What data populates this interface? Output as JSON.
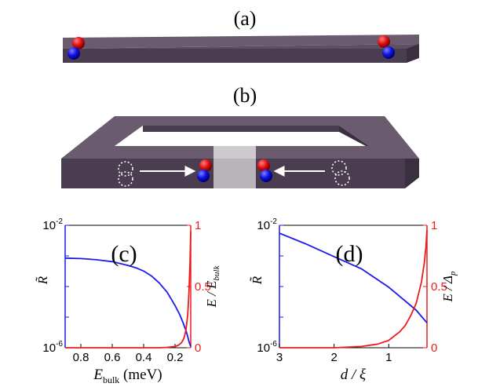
{
  "panels": {
    "a": {
      "label": "(a)"
    },
    "b": {
      "label": "(b)"
    }
  },
  "colors": {
    "blue": "#1a1aee",
    "red": "#ee1a1a",
    "bar": "#4a3d4f",
    "bar_top": "#5e5062",
    "gap": "#b9b4ba"
  },
  "chart_data": [
    {
      "panel_label": "(c)",
      "type": "line",
      "xlabel_main": "E",
      "xlabel_sub": "bulk",
      "xlabel_unit": " (meV)",
      "xlim": [
        0.9,
        0.1
      ],
      "xticks": [
        0.8,
        0.6,
        0.4,
        0.2
      ],
      "xticklabels": [
        "0.8",
        "0.6",
        "0.4",
        "0.2"
      ],
      "left_axis": {
        "label": "R̃",
        "scale": "log",
        "ylim": [
          1e-06,
          0.01
        ],
        "ticklabels": [
          "10-2",
          "10-6"
        ],
        "color": "#1a1aee"
      },
      "right_axis": {
        "label_main": "E / E",
        "label_sub": "bulk",
        "ylim": [
          0,
          1
        ],
        "ticks": [
          0,
          0.5,
          1
        ],
        "ticklabels": [
          "0",
          "0.5",
          "1"
        ],
        "color": "#ee1a1a"
      },
      "series": [
        {
          "axis": "left",
          "color": "#1a1aee",
          "x": [
            0.9,
            0.8,
            0.7,
            0.6,
            0.5,
            0.45,
            0.4,
            0.35,
            0.3,
            0.25,
            0.2,
            0.17,
            0.15,
            0.13,
            0.12,
            0.11,
            0.1
          ],
          "y": [
            0.00085,
            0.00082,
            0.00075,
            0.00065,
            0.00049,
            0.00041,
            0.00032,
            0.00022,
            0.00013,
            6.5e-05,
            2.4e-05,
            1.2e-05,
            6.8e-06,
            3.6e-06,
            2.4e-06,
            1.5e-06,
            1.1e-06
          ]
        },
        {
          "axis": "right",
          "color": "#ee1a1a",
          "x": [
            0.9,
            0.5,
            0.3,
            0.25,
            0.2,
            0.18,
            0.16,
            0.15,
            0.14,
            0.13,
            0.12,
            0.115,
            0.11,
            0.105,
            0.1
          ],
          "y": [
            0.0,
            0.0,
            0.0,
            0.003,
            0.01,
            0.02,
            0.04,
            0.06,
            0.09,
            0.15,
            0.26,
            0.36,
            0.5,
            0.68,
            0.95
          ]
        }
      ]
    },
    {
      "panel_label": "(d)",
      "type": "line",
      "xlabel_main": "d / ξ",
      "xlim": [
        3,
        0.3
      ],
      "xticks": [
        3,
        2,
        1
      ],
      "xticklabels": [
        "3",
        "2",
        "1"
      ],
      "left_axis": {
        "label": "R̃",
        "scale": "log",
        "ylim": [
          1e-06,
          0.01
        ],
        "ticklabels": [
          "10-2",
          "10-6"
        ],
        "color": "#1a1aee"
      },
      "right_axis": {
        "label_main": "E / Δ",
        "label_sub": "p",
        "ylim": [
          0,
          1
        ],
        "ticks": [
          0,
          0.5,
          1
        ],
        "ticklabels": [
          "0",
          "0.5",
          "1"
        ],
        "color": "#ee1a1a"
      },
      "series": [
        {
          "axis": "left",
          "color": "#1a1aee",
          "x": [
            3,
            2.5,
            2,
            1.5,
            1,
            0.5,
            0.3
          ],
          "y": [
            0.0055,
            0.0024,
            0.00095,
            0.00038,
            9.5e-05,
            1.7e-05,
            6.5e-06
          ]
        },
        {
          "axis": "right",
          "color": "#ee1a1a",
          "x": [
            3,
            2,
            1.5,
            1.2,
            1.0,
            0.8,
            0.7,
            0.6,
            0.5,
            0.45,
            0.4,
            0.35,
            0.32,
            0.3
          ],
          "y": [
            0.0,
            0.0,
            0.01,
            0.03,
            0.06,
            0.13,
            0.18,
            0.26,
            0.36,
            0.45,
            0.54,
            0.69,
            0.82,
            0.96
          ]
        }
      ]
    }
  ]
}
